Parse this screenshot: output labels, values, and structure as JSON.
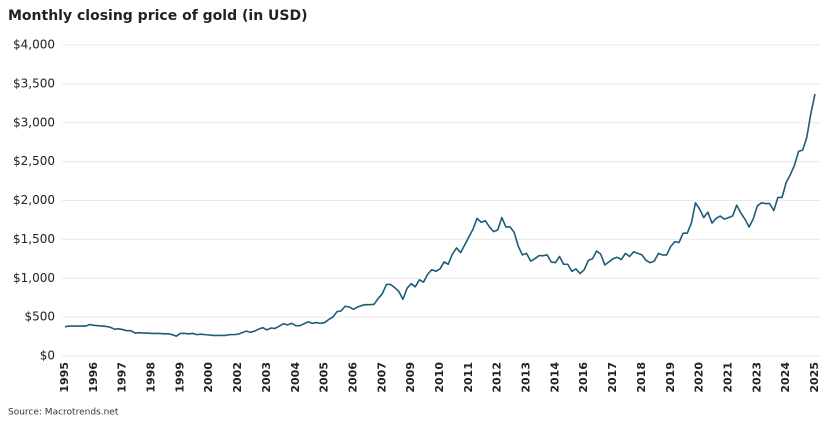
{
  "chart_data": {
    "type": "line",
    "title": "Monthly closing price of gold (in USD)",
    "source": "Source: Macrotrends.net",
    "categories": [
      "1995",
      null,
      null,
      null,
      null,
      null,
      null,
      "1996",
      null,
      null,
      null,
      null,
      null,
      null,
      "1997",
      null,
      null,
      null,
      null,
      null,
      null,
      "1998",
      null,
      null,
      null,
      null,
      null,
      null,
      "1999",
      null,
      null,
      null,
      null,
      null,
      null,
      "2000",
      null,
      null,
      null,
      null,
      null,
      null,
      "2002",
      null,
      null,
      null,
      null,
      null,
      null,
      "2003",
      null,
      null,
      null,
      null,
      null,
      null,
      "2004",
      null,
      null,
      null,
      null,
      null,
      null,
      "2005",
      null,
      null,
      null,
      null,
      null,
      null,
      "2006",
      null,
      null,
      null,
      null,
      null,
      null,
      "2007",
      null,
      null,
      null,
      null,
      null,
      null,
      "2009",
      null,
      null,
      null,
      null,
      null,
      null,
      "2010",
      null,
      null,
      null,
      null,
      null,
      null,
      "2011",
      null,
      null,
      null,
      null,
      null,
      null,
      "2012",
      null,
      null,
      null,
      null,
      null,
      null,
      "2013",
      null,
      null,
      null,
      null,
      null,
      null,
      "2014",
      null,
      null,
      null,
      null,
      null,
      null,
      "2016",
      null,
      null,
      null,
      null,
      null,
      null,
      "2017",
      null,
      null,
      null,
      null,
      null,
      null,
      "2018",
      null,
      null,
      null,
      null,
      null,
      null,
      "2019",
      null,
      null,
      null,
      null,
      null,
      null,
      "2020",
      null,
      null,
      null,
      null,
      null,
      null,
      "2021",
      null,
      null,
      null,
      null,
      null,
      null,
      "2023",
      null,
      null,
      null,
      null,
      null,
      null,
      "2024",
      null,
      null,
      null,
      null,
      null,
      null,
      "2025"
    ],
    "series": [
      {
        "color": "#1d5c78",
        "values": [
          375,
          385,
          385,
          385,
          385,
          385,
          405,
          395,
          390,
          385,
          380,
          370,
          345,
          350,
          340,
          325,
          325,
          295,
          300,
          295,
          295,
          290,
          290,
          290,
          285,
          285,
          275,
          255,
          290,
          290,
          285,
          290,
          275,
          280,
          275,
          270,
          265,
          265,
          265,
          265,
          275,
          275,
          280,
          300,
          320,
          305,
          320,
          345,
          365,
          335,
          360,
          355,
          385,
          415,
          400,
          420,
          390,
          390,
          415,
          440,
          420,
          430,
          420,
          430,
          470,
          500,
          570,
          580,
          640,
          630,
          600,
          630,
          650,
          660,
          660,
          665,
          740,
          800,
          920,
          920,
          880,
          830,
          730,
          870,
          930,
          890,
          980,
          950,
          1050,
          1110,
          1090,
          1120,
          1210,
          1180,
          1310,
          1390,
          1330,
          1430,
          1530,
          1630,
          1770,
          1720,
          1740,
          1660,
          1600,
          1620,
          1780,
          1660,
          1660,
          1590,
          1410,
          1300,
          1320,
          1220,
          1250,
          1290,
          1290,
          1300,
          1210,
          1200,
          1280,
          1180,
          1180,
          1090,
          1120,
          1060,
          1110,
          1230,
          1250,
          1350,
          1310,
          1170,
          1210,
          1250,
          1270,
          1240,
          1320,
          1280,
          1340,
          1320,
          1300,
          1230,
          1200,
          1220,
          1320,
          1300,
          1300,
          1410,
          1470,
          1460,
          1580,
          1580,
          1710,
          1970,
          1890,
          1780,
          1850,
          1710,
          1770,
          1800,
          1760,
          1780,
          1800,
          1940,
          1840,
          1760,
          1660,
          1760,
          1930,
          1970,
          1960,
          1960,
          1870,
          2040,
          2040,
          2230,
          2330,
          2450,
          2630,
          2650,
          2810,
          3120,
          3370
        ]
      }
    ],
    "ylim": [
      0,
      4000
    ],
    "yticks": [
      {
        "value": 0,
        "label": "$0"
      },
      {
        "value": 500,
        "label": "$500"
      },
      {
        "value": 1000,
        "label": "$1,000"
      },
      {
        "value": 1500,
        "label": "$1,500"
      },
      {
        "value": 2000,
        "label": "$2,000"
      },
      {
        "value": 2500,
        "label": "$2,500"
      },
      {
        "value": 3000,
        "label": "$3,000"
      },
      {
        "value": 3500,
        "label": "$3,500"
      },
      {
        "value": 4000,
        "label": "$4,000"
      }
    ],
    "grid": true
  }
}
